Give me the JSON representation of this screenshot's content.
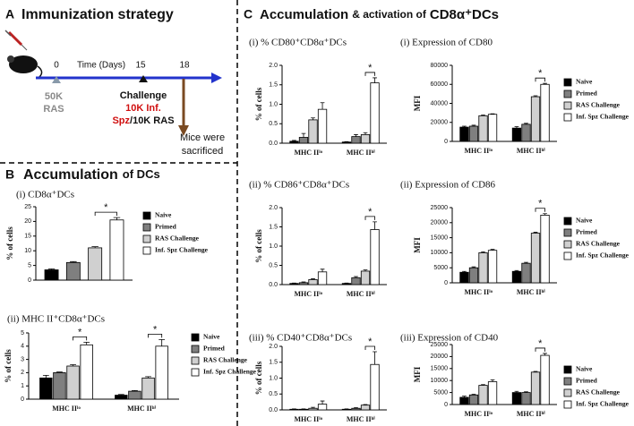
{
  "panel_a": {
    "letter": "A",
    "title": "Immunization strategy",
    "timeline": {
      "day_start": "0",
      "axis_label": "Time (Days)",
      "day_challenge": "15",
      "day_sacrifice": "18",
      "prime_dose": "50K",
      "prime_agent": "RAS",
      "challenge_label": "Challenge",
      "challenge_dose": "10K Inf.",
      "challenge_spz": "Spz",
      "challenge_alt": "/10K RAS",
      "sacrifice_line1": "Mice were",
      "sacrifice_line2": "sacrificed"
    }
  },
  "panel_b": {
    "letter": "B",
    "title_parts": [
      "Accumulation",
      "of DCs"
    ]
  },
  "panel_c": {
    "letter": "C",
    "title_parts": [
      "Accumulation",
      "& activation of",
      "CD8α⁺DCs"
    ]
  },
  "chart_data": [
    {
      "type": "bar",
      "title": "(i) CD8α⁺DCs",
      "y_label": "% of cells",
      "legend": true,
      "categories": [
        null
      ],
      "stars": [
        "*"
      ],
      "series": [
        {
          "name": "Naive",
          "color": "#000000",
          "values": [
            3.5
          ],
          "errors": [
            0.3
          ]
        },
        {
          "name": "Primed",
          "color": "#7f7f7f",
          "values": [
            6
          ],
          "errors": [
            0.3
          ]
        },
        {
          "name": "RAS Challenge",
          "color": "#d0d0d0",
          "values": [
            11
          ],
          "errors": [
            0.4
          ]
        },
        {
          "name": "Inf. Spz Challenge",
          "color": "#ffffff",
          "values": [
            20.5
          ],
          "errors": [
            0.8
          ]
        }
      ],
      "ylim": [
        0,
        25
      ],
      "yticks": [
        0,
        5,
        10,
        15,
        20,
        25
      ]
    },
    {
      "type": "bar",
      "title": "(ii) MHC II⁺CD8α⁺DCs",
      "y_label": "% of cells",
      "legend": true,
      "categories": [
        "MHC IIˡᵒ",
        "MHC IIʰⁱ"
      ],
      "stars": [
        "*",
        "*"
      ],
      "series": [
        {
          "name": "Naive",
          "color": "#000000",
          "values": [
            1.6,
            0.3
          ],
          "errors": [
            0.2,
            0.05
          ]
        },
        {
          "name": "Primed",
          "color": "#7f7f7f",
          "values": [
            2.0,
            0.6
          ],
          "errors": [
            0.05,
            0.05
          ]
        },
        {
          "name": "RAS Challenge",
          "color": "#d0d0d0",
          "values": [
            2.5,
            1.6
          ],
          "errors": [
            0.1,
            0.1
          ]
        },
        {
          "name": "Inf. Spz Challenge",
          "color": "#ffffff",
          "values": [
            4.1,
            4.0
          ],
          "errors": [
            0.2,
            0.5
          ]
        }
      ],
      "ylim": [
        0,
        5
      ],
      "yticks": [
        0,
        1,
        2,
        3,
        4,
        5
      ]
    },
    {
      "type": "bar",
      "title": "(i) % CD80⁺CD8α⁺DCs",
      "y_label": "% of cells",
      "legend": false,
      "categories": [
        "MHC IIˡᵒ",
        "MHC IIʰⁱ"
      ],
      "stars": [
        null,
        "*"
      ],
      "series": [
        {
          "name": "Naive",
          "color": "#000000",
          "values": [
            0.05,
            0.03
          ],
          "errors": [
            0.02,
            0.01
          ]
        },
        {
          "name": "Primed",
          "color": "#7f7f7f",
          "values": [
            0.15,
            0.17
          ],
          "errors": [
            0.1,
            0.05
          ]
        },
        {
          "name": "RAS Challenge",
          "color": "#d0d0d0",
          "values": [
            0.6,
            0.22
          ],
          "errors": [
            0.05,
            0.05
          ]
        },
        {
          "name": "Inf. Spz Challenge",
          "color": "#ffffff",
          "values": [
            0.87,
            1.55
          ],
          "errors": [
            0.17,
            0.13
          ]
        }
      ],
      "ylim": [
        0,
        2
      ],
      "yticks": [
        {
          "value": 0,
          "label": "0.0"
        },
        0.5,
        {
          "value": 1,
          "label": "1.0"
        },
        1.5,
        {
          "value": 2,
          "label": "2.0"
        }
      ]
    },
    {
      "type": "bar",
      "title": "(i) Expression of CD80",
      "y_label": "MFI",
      "legend": true,
      "categories": [
        "MHC IIˡᵒ",
        "MHC IIʰⁱ"
      ],
      "stars": [
        null,
        "*"
      ],
      "series": [
        {
          "name": "Naive",
          "color": "#000000",
          "values": [
            15000,
            14000
          ],
          "errors": [
            1000,
            1500
          ]
        },
        {
          "name": "Primed",
          "color": "#7f7f7f",
          "values": [
            16000,
            18000
          ],
          "errors": [
            1000,
            1000
          ]
        },
        {
          "name": "RAS Challenge",
          "color": "#d0d0d0",
          "values": [
            27000,
            47000
          ],
          "errors": [
            800,
            1000
          ]
        },
        {
          "name": "Inf. Spz Challenge",
          "color": "#ffffff",
          "values": [
            28500,
            60000
          ],
          "errors": [
            500,
            1000
          ]
        }
      ],
      "ylim": [
        0,
        80000
      ],
      "yticks": [
        0,
        20000,
        40000,
        60000,
        80000
      ]
    },
    {
      "type": "bar",
      "title": "(ii) % CD86⁺CD8α⁺DCs",
      "y_label": "% of cells",
      "legend": false,
      "categories": [
        "MHC IIˡᵒ",
        "MHC IIʰⁱ"
      ],
      "stars": [
        null,
        "*"
      ],
      "series": [
        {
          "name": "Naive",
          "color": "#000000",
          "values": [
            0.03,
            0.03
          ],
          "errors": [
            0.01,
            0.01
          ]
        },
        {
          "name": "Primed",
          "color": "#7f7f7f",
          "values": [
            0.05,
            0.18
          ],
          "errors": [
            0.02,
            0.03
          ]
        },
        {
          "name": "RAS Challenge",
          "color": "#d0d0d0",
          "values": [
            0.13,
            0.35
          ],
          "errors": [
            0.02,
            0.03
          ]
        },
        {
          "name": "Inf. Spz Challenge",
          "color": "#ffffff",
          "values": [
            0.33,
            1.43
          ],
          "errors": [
            0.07,
            0.2
          ]
        }
      ],
      "ylim": [
        0,
        2
      ],
      "yticks": [
        {
          "value": 0,
          "label": "0.0"
        },
        0.5,
        {
          "value": 1,
          "label": "1.0"
        },
        1.5,
        {
          "value": 2,
          "label": "2.0"
        }
      ]
    },
    {
      "type": "bar",
      "title": "(ii) Expression of CD86",
      "y_label": "MFI",
      "legend": true,
      "categories": [
        "MHC IIˡᵒ",
        "MHC IIʰⁱ"
      ],
      "stars": [
        null,
        "*"
      ],
      "series": [
        {
          "name": "Naive",
          "color": "#000000",
          "values": [
            3500,
            3800
          ],
          "errors": [
            300,
            300
          ]
        },
        {
          "name": "Primed",
          "color": "#7f7f7f",
          "values": [
            5000,
            6500
          ],
          "errors": [
            300,
            300
          ]
        },
        {
          "name": "RAS Challenge",
          "color": "#d0d0d0",
          "values": [
            10000,
            16500
          ],
          "errors": [
            300,
            300
          ]
        },
        {
          "name": "Inf. Spz Challenge",
          "color": "#ffffff",
          "values": [
            10800,
            22500
          ],
          "errors": [
            300,
            500
          ]
        }
      ],
      "ylim": [
        0,
        25000
      ],
      "yticks": [
        0,
        5000,
        10000,
        15000,
        20000,
        25000
      ]
    },
    {
      "type": "bar",
      "title": "(iii) % CD40⁺CD8α⁺DCs",
      "y_label": "% of cells",
      "legend": false,
      "categories": [
        "MHC IIˡᵒ",
        "MHC IIʰⁱ"
      ],
      "stars": [
        null,
        "*"
      ],
      "series": [
        {
          "name": "Naive",
          "color": "#000000",
          "values": [
            0.02,
            0.02
          ],
          "errors": [
            0.01,
            0.01
          ]
        },
        {
          "name": "Primed",
          "color": "#7f7f7f",
          "values": [
            0.02,
            0.05
          ],
          "errors": [
            0.01,
            0.02
          ]
        },
        {
          "name": "RAS Challenge",
          "color": "#d0d0d0",
          "values": [
            0.05,
            0.15
          ],
          "errors": [
            0.03,
            0.02
          ]
        },
        {
          "name": "Inf. Spz Challenge",
          "color": "#ffffff",
          "values": [
            0.18,
            1.43
          ],
          "errors": [
            0.1,
            0.4
          ]
        }
      ],
      "ylim": [
        0,
        2
      ],
      "yticks": [
        {
          "value": 0,
          "label": "0.0"
        },
        0.5,
        {
          "value": 1,
          "label": "1.0"
        },
        1.5,
        {
          "value": 2,
          "label": "2.0"
        }
      ]
    },
    {
      "type": "bar",
      "title": "(iii) Expression of CD40",
      "y_label": "MFI",
      "legend": true,
      "categories": [
        "MHC IIˡᵒ",
        "MHC IIʰⁱ"
      ],
      "stars": [
        null,
        "*"
      ],
      "series": [
        {
          "name": "Naive",
          "color": "#000000",
          "values": [
            3000,
            5000
          ],
          "errors": [
            500,
            500
          ]
        },
        {
          "name": "Primed",
          "color": "#7f7f7f",
          "values": [
            4000,
            5000
          ],
          "errors": [
            300,
            300
          ]
        },
        {
          "name": "RAS Challenge",
          "color": "#d0d0d0",
          "values": [
            8000,
            13500
          ],
          "errors": [
            300,
            300
          ]
        },
        {
          "name": "Inf. Spz Challenge",
          "color": "#ffffff",
          "values": [
            9500,
            20500
          ],
          "errors": [
            800,
            800
          ]
        }
      ],
      "ylim": [
        0,
        25000
      ],
      "yticks": [
        0,
        5000,
        10000,
        15000,
        20000,
        25000
      ]
    }
  ]
}
